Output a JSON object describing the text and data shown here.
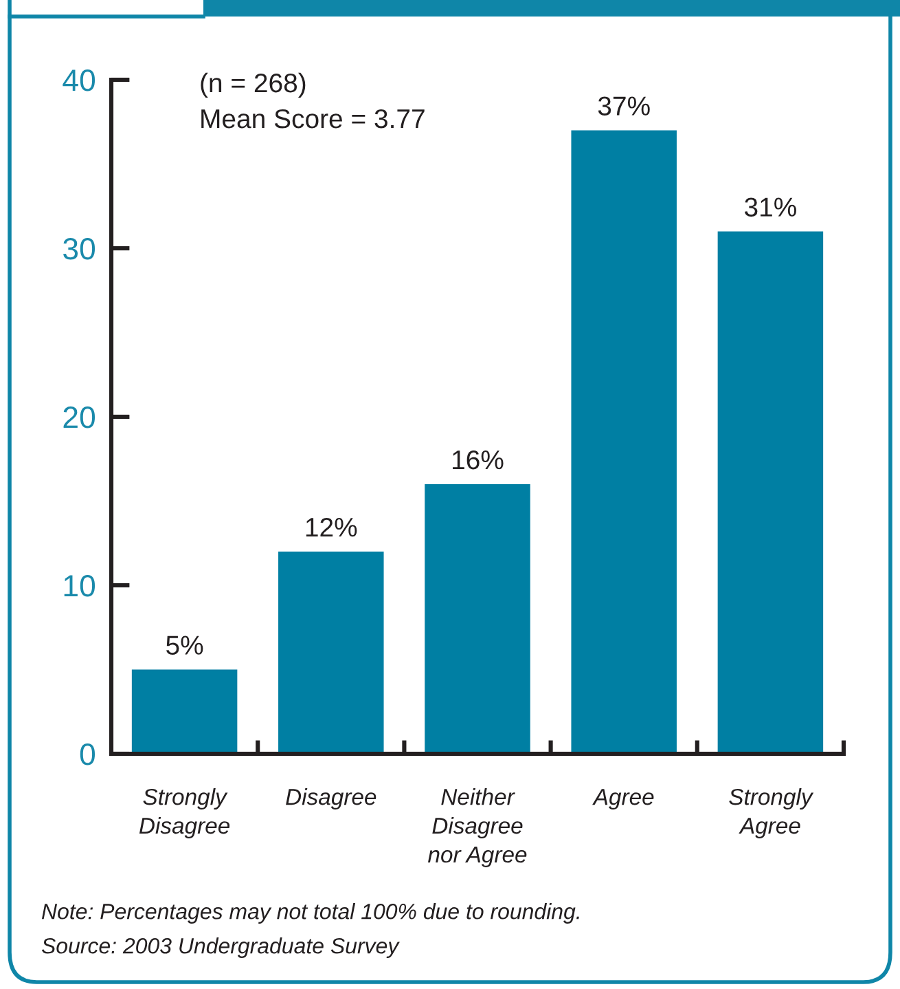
{
  "chart_data": {
    "type": "bar",
    "categories": [
      "Strongly\nDisagree",
      "Disagree",
      "Neither\nDisagree\nnor Agree",
      "Agree",
      "Strongly\nAgree"
    ],
    "values": [
      5,
      12,
      16,
      37,
      31
    ],
    "value_labels": [
      "5%",
      "12%",
      "16%",
      "37%",
      "31%"
    ],
    "color": "#007fa3",
    "ylim": [
      0,
      40
    ],
    "yticks": [
      0,
      10,
      20,
      30,
      40
    ],
    "annotations": [
      "(n = 268)",
      "Mean Score = 3.77",
      "Note: Percentages may not total 100% due to rounding.",
      "Source: 2003 Undergraduate Survey"
    ]
  }
}
